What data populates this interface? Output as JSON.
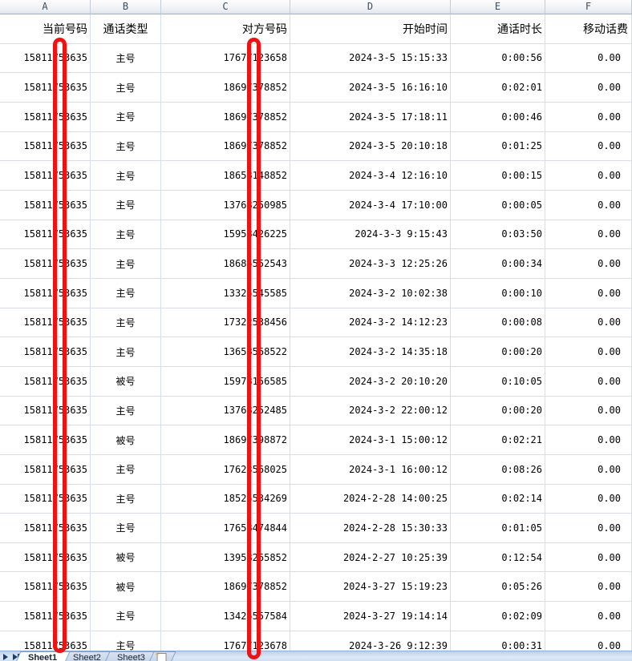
{
  "spreadsheet": {
    "column_letters": [
      "A",
      "B",
      "C",
      "D",
      "E",
      "F"
    ],
    "header_row": [
      "当前号码",
      "通话类型",
      "对方号码",
      "开始时间",
      "通话时长",
      "移动话费"
    ],
    "rows": [
      [
        "15811753635",
        "主号",
        "17677123658",
        "2024-3-5 15:15:33",
        "0:00:56",
        "0.00"
      ],
      [
        "15811753635",
        "主号",
        "18697378852",
        "2024-3-5 16:16:10",
        "0:02:01",
        "0.00"
      ],
      [
        "15811753635",
        "主号",
        "18697378852",
        "2024-3-5 17:18:11",
        "0:00:46",
        "0.00"
      ],
      [
        "15811753635",
        "主号",
        "18697378852",
        "2024-3-5 20:10:18",
        "0:01:25",
        "0.00"
      ],
      [
        "15811753635",
        "主号",
        "18658148852",
        "2024-3-4 12:16:10",
        "0:00:15",
        "0.00"
      ],
      [
        "15811753635",
        "主号",
        "13768250985",
        "2024-3-4 17:10:00",
        "0:00:05",
        "0.00"
      ],
      [
        "15811753635",
        "主号",
        "15958426225",
        "2024-3-3 9:15:43",
        "0:03:50",
        "0.00"
      ],
      [
        "15811753635",
        "主号",
        "18685552543",
        "2024-3-3 12:25:26",
        "0:00:34",
        "0.00"
      ],
      [
        "15811753635",
        "主号",
        "13325545585",
        "2024-3-2 10:02:38",
        "0:00:10",
        "0.00"
      ],
      [
        "15811753635",
        "主号",
        "17322538456",
        "2024-3-2 14:12:23",
        "0:00:08",
        "0.00"
      ],
      [
        "15811753635",
        "主号",
        "13658568522",
        "2024-3-2 14:35:18",
        "0:00:20",
        "0.00"
      ],
      [
        "15811753635",
        "被号",
        "15978156585",
        "2024-3-2 20:10:20",
        "0:10:05",
        "0.00"
      ],
      [
        "15811753635",
        "主号",
        "13768252485",
        "2024-3-2 22:00:12",
        "0:00:20",
        "0.00"
      ],
      [
        "15811753635",
        "被号",
        "18697398872",
        "2024-3-1 15:00:12",
        "0:02:21",
        "0.00"
      ],
      [
        "15811753635",
        "主号",
        "17623568025",
        "2024-3-1 16:00:12",
        "0:08:26",
        "0.00"
      ],
      [
        "15811753635",
        "主号",
        "18525534269",
        "2024-2-28 14:00:25",
        "0:02:14",
        "0.00"
      ],
      [
        "15811753635",
        "主号",
        "17658474844",
        "2024-2-28 15:30:33",
        "0:01:05",
        "0.00"
      ],
      [
        "15811753635",
        "被号",
        "13958265852",
        "2024-2-27 10:25:39",
        "0:12:54",
        "0.00"
      ],
      [
        "15811753635",
        "被号",
        "18697378852",
        "2024-3-27 15:19:23",
        "0:05:26",
        "0.00"
      ],
      [
        "15811753635",
        "主号",
        "13425557584",
        "2024-3-27 19:14:14",
        "0:02:09",
        "0.00"
      ],
      [
        "15811753635",
        "主号",
        "17677123678",
        "2024-3-26 9:12:39",
        "0:00:31",
        "0.00"
      ]
    ]
  },
  "annotations": {
    "redaction_color": "#ee1212",
    "redaction_note_left": "covers one digit of column A numbers",
    "redaction_note_right": "covers one digit of column C numbers"
  },
  "sheetbar": {
    "tabs": [
      "Sheet1",
      "Sheet2",
      "Sheet3"
    ],
    "active_tab": "Sheet1",
    "nav_next_label": "next sheet",
    "nav_last_label": "last sheet"
  },
  "colors": {
    "grid_line": "#d6dde8",
    "column_header_text": "#3d4c5d",
    "column_header_border": "#9fadbf",
    "tabbar_background_top": "#bdd0e9",
    "tabbar_border": "#8fb0da"
  }
}
